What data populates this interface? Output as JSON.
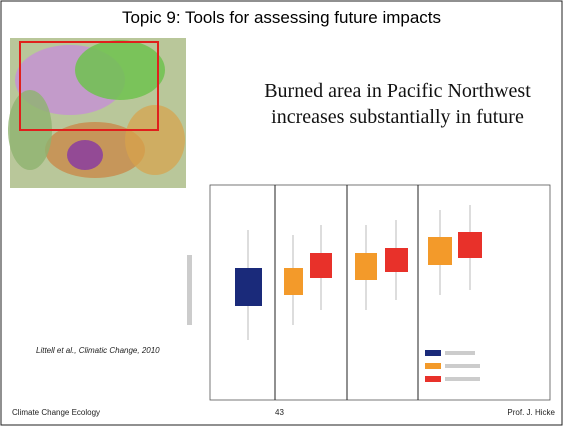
{
  "header": {
    "title": "Topic 9:  Tools for assessing future impacts"
  },
  "body": {
    "lines": [
      "Burned area in Pacific Northwest",
      "increases substantially in future"
    ],
    "citation": "Littell et al., Climatic Change, 2010"
  },
  "footer": {
    "left": "Climate Change Ecology",
    "page": "43",
    "right": "Prof. J. Hicke"
  }
}
